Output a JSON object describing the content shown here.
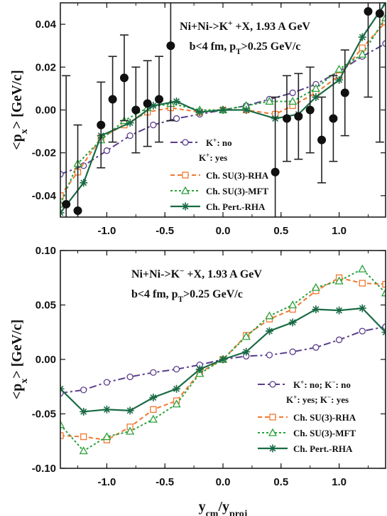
{
  "chart_data": [
    {
      "type": "line",
      "xlabel": "",
      "ylabel": "<p_x> [GeV/c]",
      "xlim": [
        -1.4,
        1.4
      ],
      "ylim": [
        -0.05,
        0.05
      ],
      "xticks": [
        -1.0,
        -0.5,
        0.0,
        0.5,
        1.0
      ],
      "xtick_labels": [
        "-1.0",
        "-0.5",
        "0.0",
        "0.5",
        "1.0"
      ],
      "yticks": [
        -0.04,
        -0.02,
        0.0,
        0.02,
        0.04
      ],
      "ytick_labels": [
        "-0.04",
        "-0.02",
        "0.00",
        "0.02",
        "0.04"
      ],
      "annotations": [
        "Ni+Ni->K+ +X, 1.93 A GeV",
        "b<4 fm,  pT>0.25 GeV/c"
      ],
      "legend_header": "K+: yes",
      "legend_position": "center",
      "series": [
        {
          "name": "K+: no",
          "style": "dashdot",
          "marker": "circle",
          "color": "#5a3e8c",
          "x": [
            -1.4,
            -1.2,
            -1.0,
            -0.8,
            -0.6,
            -0.4,
            -0.2,
            0.0,
            0.2,
            0.4,
            0.6,
            0.8,
            1.0,
            1.2,
            1.4
          ],
          "y": [
            -0.03,
            -0.026,
            -0.019,
            -0.012,
            -0.007,
            -0.004,
            -0.002,
            0.0,
            0.002,
            0.005,
            0.008,
            0.012,
            0.018,
            0.025,
            0.031
          ]
        },
        {
          "name": "Ch. SU(3)-RHA",
          "style": "dashed",
          "marker": "square",
          "color": "#f07830",
          "x": [
            -1.4,
            -1.25,
            -1.05,
            -0.85,
            -0.65,
            -0.45,
            -0.2,
            0.0,
            0.2,
            0.45,
            0.6,
            0.8,
            1.0,
            1.2,
            1.4
          ],
          "y": [
            -0.04,
            -0.029,
            -0.013,
            -0.007,
            -0.001,
            0.001,
            -0.001,
            0.0,
            0.0,
            -0.002,
            0.002,
            0.008,
            0.016,
            0.029,
            0.041
          ]
        },
        {
          "name": "Ch. SU(3)-MFT",
          "style": "dotted",
          "marker": "triangle",
          "color": "#2aa13b",
          "x": [
            -1.4,
            -1.25,
            -1.05,
            -0.85,
            -0.65,
            -0.45,
            -0.2,
            0.0,
            0.2,
            0.4,
            0.6,
            0.8,
            1.0,
            1.2,
            1.4
          ],
          "y": [
            -0.044,
            -0.025,
            -0.014,
            -0.005,
            0.001,
            0.003,
            0.0,
            0.0,
            0.002,
            0.004,
            0.004,
            0.01,
            0.019,
            0.026,
            0.043
          ]
        },
        {
          "name": "Ch. Pert.-RHA",
          "style": "solid",
          "marker": "star",
          "color": "#1a6b45",
          "x": [
            -1.4,
            -1.2,
            -1.05,
            -0.8,
            -0.6,
            -0.4,
            -0.2,
            0.0,
            0.2,
            0.45,
            0.65,
            0.8,
            1.0,
            1.2,
            1.4
          ],
          "y": [
            -0.048,
            -0.034,
            -0.012,
            -0.006,
            0.002,
            0.004,
            -0.001,
            0.0,
            0.0,
            -0.004,
            -0.002,
            0.006,
            0.014,
            0.034,
            0.05
          ]
        },
        {
          "name": "data",
          "style": "none",
          "marker": "filled-circle",
          "color": "#111111",
          "x": [
            -1.35,
            -1.25,
            -1.05,
            -0.95,
            -0.85,
            -0.75,
            -0.65,
            -0.55,
            -0.45,
            0.45,
            0.55,
            0.65,
            0.75,
            0.85,
            0.95,
            1.05,
            1.25,
            1.35
          ],
          "y": [
            -0.044,
            -0.047,
            -0.007,
            0.005,
            0.015,
            0.0,
            0.003,
            0.005,
            0.03,
            -0.029,
            -0.004,
            -0.003,
            0.0,
            -0.014,
            -0.004,
            0.008,
            0.046,
            0.045
          ],
          "err": [
            0.06,
            0.04,
            0.02,
            0.02,
            0.02,
            0.02,
            0.02,
            0.02,
            0.035,
            0.035,
            0.02,
            0.02,
            0.02,
            0.02,
            0.02,
            0.02,
            0.04,
            0.06
          ]
        }
      ]
    },
    {
      "type": "line",
      "xlabel": "y_cm/y_proj",
      "ylabel": "<p_x> [GeV/c]",
      "xlim": [
        -1.4,
        1.4
      ],
      "ylim": [
        -0.1,
        0.1
      ],
      "xticks": [
        -1.0,
        -0.5,
        0.0,
        0.5,
        1.0
      ],
      "xtick_labels": [
        "-1.0",
        "-0.5",
        "0.0",
        "0.5",
        "1.0"
      ],
      "yticks": [
        -0.1,
        -0.05,
        0.0,
        0.05,
        0.1
      ],
      "ytick_labels": [
        "-0.10",
        "-0.05",
        "0.00",
        "0.05",
        "0.10"
      ],
      "annotations": [
        "Ni+Ni->K- +X, 1.93 A GeV",
        "b<4 fm,  pT>0.25 GeV/c"
      ],
      "legend_header": "K+: yes; K-: yes",
      "legend_position": "bottom-right",
      "series": [
        {
          "name": "K+: no;  K-: no",
          "style": "dashdot",
          "marker": "circle",
          "color": "#5a3e8c",
          "x": [
            -1.4,
            -1.2,
            -1.0,
            -0.8,
            -0.6,
            -0.4,
            -0.2,
            0.0,
            0.2,
            0.4,
            0.6,
            0.8,
            1.0,
            1.2,
            1.4
          ],
          "y": [
            -0.031,
            -0.028,
            -0.021,
            -0.016,
            -0.012,
            -0.009,
            -0.005,
            0.0,
            0.003,
            0.004,
            0.007,
            0.011,
            0.018,
            0.026,
            0.03
          ]
        },
        {
          "name": "Ch. SU(3)-RHA",
          "style": "dashed",
          "marker": "square",
          "color": "#f07830",
          "x": [
            -1.4,
            -1.2,
            -1.0,
            -0.8,
            -0.6,
            -0.4,
            -0.2,
            0.0,
            0.2,
            0.4,
            0.6,
            0.8,
            1.0,
            1.2,
            1.4
          ],
          "y": [
            -0.07,
            -0.071,
            -0.074,
            -0.062,
            -0.046,
            -0.038,
            -0.012,
            0.0,
            0.022,
            0.037,
            0.046,
            0.063,
            0.075,
            0.07,
            0.069
          ]
        },
        {
          "name": "Ch. SU(3)-MFT",
          "style": "dotted",
          "marker": "triangle",
          "color": "#2aa13b",
          "x": [
            -1.4,
            -1.2,
            -1.0,
            -0.8,
            -0.6,
            -0.4,
            -0.2,
            0.0,
            0.2,
            0.4,
            0.6,
            0.8,
            1.0,
            1.2,
            1.4
          ],
          "y": [
            -0.06,
            -0.084,
            -0.071,
            -0.066,
            -0.055,
            -0.041,
            -0.013,
            0.0,
            0.021,
            0.04,
            0.05,
            0.066,
            0.072,
            0.083,
            0.061
          ]
        },
        {
          "name": "Ch. Pert.-RHA",
          "style": "solid",
          "marker": "star",
          "color": "#1a6b45",
          "x": [
            -1.4,
            -1.2,
            -1.0,
            -0.8,
            -0.6,
            -0.4,
            -0.2,
            0.0,
            0.2,
            0.4,
            0.6,
            0.8,
            1.0,
            1.2,
            1.4
          ],
          "y": [
            -0.027,
            -0.048,
            -0.046,
            -0.047,
            -0.035,
            -0.027,
            -0.009,
            0.0,
            0.007,
            0.026,
            0.034,
            0.046,
            0.045,
            0.047,
            0.025
          ]
        }
      ]
    }
  ]
}
